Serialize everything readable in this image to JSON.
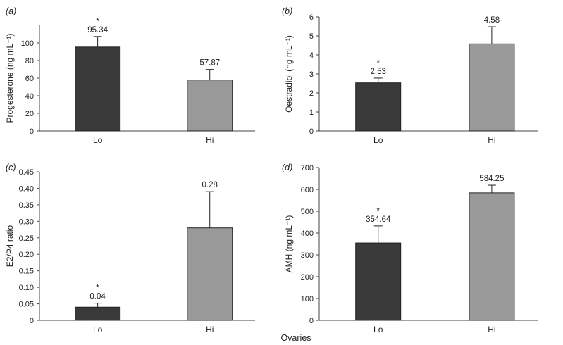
{
  "xlabel": "Ovaries",
  "colors": {
    "lo": "#3a3a3a",
    "hi": "#999999",
    "axis": "#444444"
  },
  "chart_data": [
    {
      "type": "bar",
      "panel": "(a)",
      "ylabel": "Progesterone (ng mL⁻¹)",
      "ylim": [
        0,
        120
      ],
      "yticks": [
        0,
        20,
        40,
        60,
        80,
        100
      ],
      "categories": [
        "Lo",
        "Hi"
      ],
      "values": [
        95.34,
        57.87
      ],
      "value_labels": [
        "95.34",
        "57.87"
      ],
      "errors": [
        12,
        12
      ],
      "significance": [
        "*",
        ""
      ]
    },
    {
      "type": "bar",
      "panel": "(b)",
      "ylabel": "Oestradiol (ng mL⁻¹)",
      "ylim": [
        0,
        6
      ],
      "yticks": [
        0,
        1,
        2,
        3,
        4,
        5,
        6
      ],
      "categories": [
        "Lo",
        "Hi"
      ],
      "values": [
        2.53,
        4.58
      ],
      "value_labels": [
        "2.53",
        "4.58"
      ],
      "errors": [
        0.25,
        0.9
      ],
      "significance": [
        "*",
        ""
      ]
    },
    {
      "type": "bar",
      "panel": "(c)",
      "ylabel": "E2/P4 ratio",
      "ylim": [
        0,
        0.45
      ],
      "yticks": [
        0,
        0.05,
        0.1,
        0.15,
        0.2,
        0.25,
        0.3,
        0.35,
        0.4,
        0.45
      ],
      "ytick_labels": [
        "0",
        "0.05",
        "0.10",
        "0.15",
        "0.20",
        "0.25",
        "0.30",
        "0.35",
        "0.40",
        "0.45"
      ],
      "categories": [
        "Lo",
        "Hi"
      ],
      "values": [
        0.04,
        0.28
      ],
      "value_labels": [
        "0.04",
        "0.28"
      ],
      "errors": [
        0.012,
        0.11
      ],
      "significance": [
        "*",
        ""
      ]
    },
    {
      "type": "bar",
      "panel": "(d)",
      "ylabel": "AMH (ng mL⁻¹)",
      "ylim": [
        0,
        700
      ],
      "yticks": [
        0,
        100,
        200,
        300,
        400,
        500,
        600,
        700
      ],
      "categories": [
        "Lo",
        "Hi"
      ],
      "values": [
        354.64,
        584.25
      ],
      "value_labels": [
        "354.64",
        "584.25"
      ],
      "errors": [
        78,
        35
      ],
      "significance": [
        "*",
        ""
      ]
    }
  ]
}
